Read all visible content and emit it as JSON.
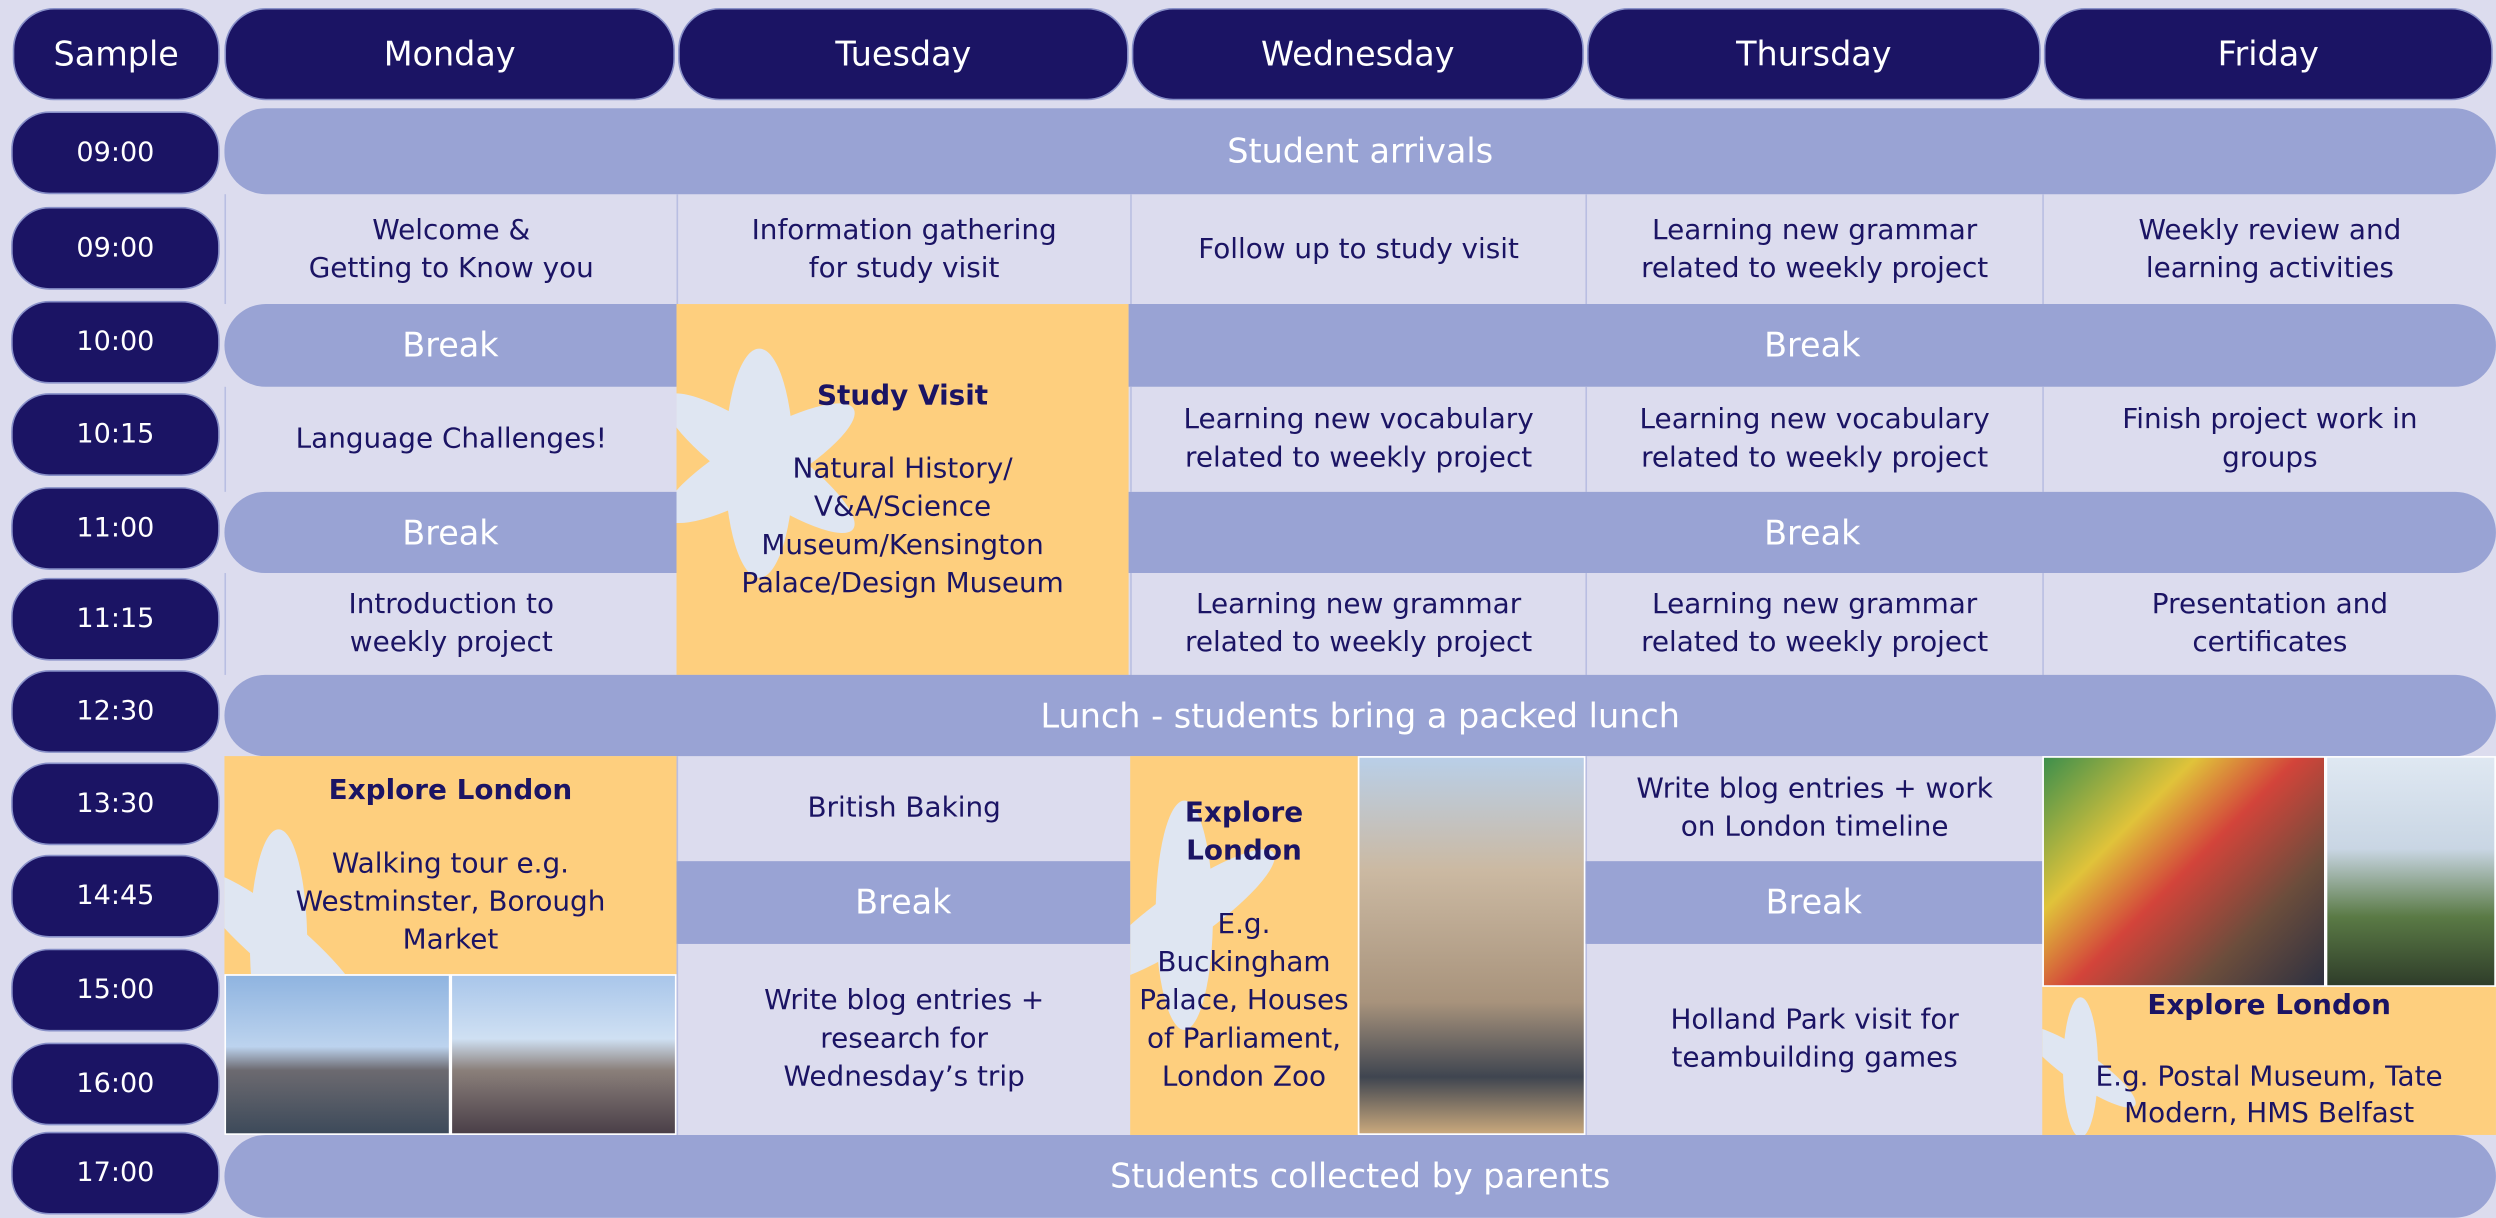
{
  "header": {
    "corner": "Sample",
    "days": [
      "Monday",
      "Tuesday",
      "Wednesday",
      "Thursday",
      "Friday"
    ]
  },
  "times": [
    "09:00",
    "09:00",
    "10:00",
    "10:15",
    "11:00",
    "11:15",
    "12:30",
    "13:30",
    "14:45",
    "15:00",
    "16:00",
    "17:00"
  ],
  "events": [
    {
      "lines": [
        "Student arrivals"
      ]
    },
    {
      "lines": [
        "Welcome &",
        "Getting to Know you"
      ]
    },
    {
      "lines": [
        "Information gathering",
        "for study visit"
      ]
    },
    {
      "lines": [
        "Follow up to study visit"
      ]
    },
    {
      "lines": [
        "Learning new grammar",
        "related to weekly project"
      ]
    },
    {
      "lines": [
        "Weekly review and",
        "learning activities"
      ]
    },
    {
      "lines": [
        "Break"
      ]
    },
    {
      "title": [
        "Study Visit"
      ],
      "lines": [
        "Natural History/",
        "V&A/Science",
        "Museum/Kensington",
        "Palace/Design Museum"
      ]
    },
    {
      "lines": [
        "Break"
      ]
    },
    {
      "lines": [
        "Language Challenges!"
      ]
    },
    {
      "lines": [
        "Learning new vocabulary",
        "related to weekly project"
      ]
    },
    {
      "lines": [
        "Learning new vocabulary",
        "related to weekly project"
      ]
    },
    {
      "lines": [
        "Finish project work in",
        "groups"
      ]
    },
    {
      "lines": [
        "Break"
      ]
    },
    {
      "lines": [
        "Break"
      ]
    },
    {
      "lines": [
        "Introduction to",
        "weekly project"
      ]
    },
    {
      "lines": [
        "Learning new grammar",
        "related to weekly project"
      ]
    },
    {
      "lines": [
        "Learning new grammar",
        "related to weekly project"
      ]
    },
    {
      "lines": [
        "Presentation and",
        "certificates"
      ]
    },
    {
      "lines": [
        "Lunch - students bring a packed lunch"
      ]
    },
    {
      "title": [
        "Explore London"
      ],
      "lines": [
        "Walking tour e.g.",
        "Westminster, Borough",
        "Market"
      ]
    },
    {
      "lines": [
        "British Baking"
      ]
    },
    {
      "title": [
        "Explore",
        "London"
      ],
      "lines": [
        "E.g.",
        "Buckingham",
        "Palace, Houses",
        "of Parliament,",
        "London Zoo"
      ]
    },
    {
      "lines": [
        "Write blog entries + work",
        "on London timeline"
      ]
    },
    {
      "lines": [
        "Break"
      ]
    },
    {
      "lines": [
        "Break"
      ]
    },
    {
      "lines": [
        "Write blog entries +",
        "research for",
        "Wednesday’s trip"
      ]
    },
    {
      "lines": [
        "Holland Park visit for",
        "teambuilding games"
      ]
    },
    {
      "title": [
        "Explore London"
      ],
      "lines": [
        "E.g. Postal Museum, Tate",
        "Modern, HMS Belfast"
      ]
    },
    {
      "lines": [
        "Students collected by parents"
      ]
    }
  ]
}
